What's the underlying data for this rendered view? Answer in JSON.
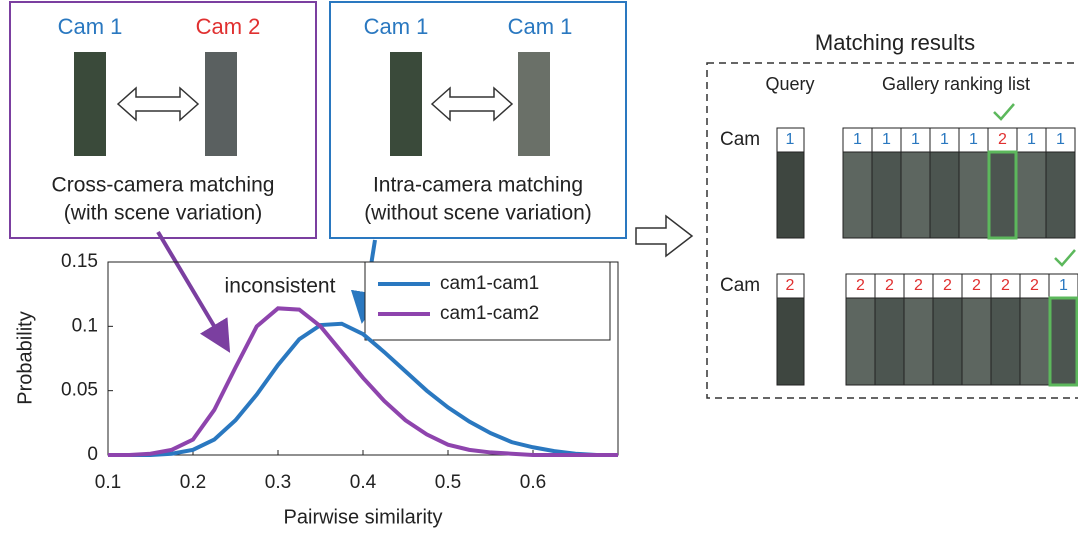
{
  "chart_data": {
    "type": "line",
    "x_label": "Pairwise similarity",
    "y_label": "Probability",
    "annotation": "inconsistent",
    "x": [
      0.1,
      0.125,
      0.15,
      0.175,
      0.2,
      0.225,
      0.25,
      0.275,
      0.3,
      0.325,
      0.35,
      0.375,
      0.4,
      0.425,
      0.45,
      0.475,
      0.5,
      0.525,
      0.55,
      0.575,
      0.6,
      0.625,
      0.65,
      0.675,
      0.7
    ],
    "series": [
      {
        "name": "cam1-cam1",
        "color": "#2a78c0",
        "values": [
          0,
          0,
          0,
          0.001,
          0.004,
          0.012,
          0.027,
          0.047,
          0.07,
          0.09,
          0.101,
          0.102,
          0.094,
          0.08,
          0.065,
          0.05,
          0.037,
          0.026,
          0.017,
          0.01,
          0.006,
          0.003,
          0.001,
          0,
          0
        ]
      },
      {
        "name": "cam1-cam2",
        "color": "#8e44ad",
        "values": [
          0,
          0,
          0.001,
          0.004,
          0.012,
          0.035,
          0.068,
          0.1,
          0.114,
          0.113,
          0.1,
          0.08,
          0.06,
          0.042,
          0.027,
          0.016,
          0.008,
          0.004,
          0.002,
          0.001,
          0,
          0,
          0,
          0,
          0
        ]
      }
    ],
    "xlim": [
      0.1,
      0.7
    ],
    "xticks": [
      0.1,
      0.2,
      0.3,
      0.4,
      0.5,
      0.6
    ],
    "ylim": [
      0,
      0.15
    ],
    "yticks": [
      0,
      0.05,
      0.1,
      0.15
    ],
    "legend": "upper right"
  },
  "cross_box": {
    "cam_a": "Cam 1",
    "cam_b": "Cam 2",
    "title": "Cross-camera matching",
    "subtitle": "(with scene variation)"
  },
  "intra_box": {
    "cam_a": "Cam 1",
    "cam_b": "Cam 1",
    "title": "Intra-camera matching",
    "subtitle": "(without scene variation)"
  },
  "matching": {
    "title": "Matching results",
    "query_header": "Query",
    "gallery_header": "Gallery ranking list",
    "cam_colors": {
      "1": "#2a78c0",
      "2": "#e03030"
    },
    "rows": [
      {
        "label": "Cam",
        "query": "1",
        "gallery": [
          "1",
          "1",
          "1",
          "1",
          "1",
          "2",
          "1",
          "1"
        ]
      },
      {
        "label": "Cam",
        "query": "2",
        "gallery": [
          "2",
          "2",
          "2",
          "2",
          "2",
          "2",
          "2",
          "1"
        ]
      }
    ]
  }
}
